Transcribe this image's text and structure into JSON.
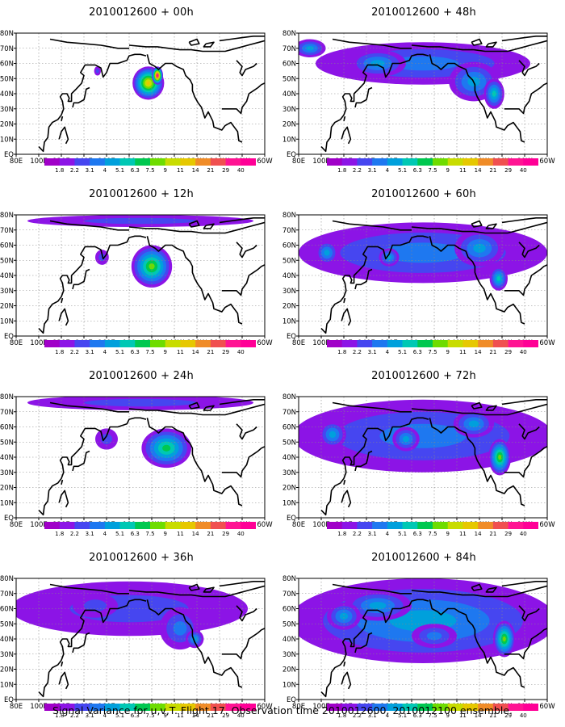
{
  "caption": "Signal Variance for u,v,T. Flight 17. Observation time 2010012600. 2010012100 ensemble.",
  "colorbar": {
    "labels": [
      "1.8",
      "2.2",
      "3.1",
      "4",
      "5.1",
      "6.3",
      "7.5",
      "9",
      "11",
      "14",
      "21",
      "29",
      "40"
    ],
    "colors": [
      "#a000c8",
      "#8c14e6",
      "#4646f0",
      "#1e78f0",
      "#00a0dc",
      "#00c8b4",
      "#00c850",
      "#6edc00",
      "#c8dc00",
      "#e6c800",
      "#f08c28",
      "#f05050",
      "#ff1493",
      "#ff0096"
    ]
  },
  "x_ticks": [
    "80E",
    "100E",
    "120E",
    "140E",
    "160E",
    "180",
    "160W",
    "140W",
    "120W",
    "100W",
    "80W",
    "60W"
  ],
  "y_ticks": [
    "EQ",
    "10N",
    "20N",
    "30N",
    "40N",
    "50N",
    "60N",
    "70N",
    "80N"
  ],
  "chart_data": [
    {
      "type": "heatmap",
      "title": "2010012600 + 00h",
      "lon_range": [
        "80E",
        "60W"
      ],
      "lat_range": [
        "EQ",
        "80N"
      ],
      "blobs": [
        {
          "lon": 197,
          "lat": 47,
          "rlon": 14,
          "rlat": 11,
          "peak": 11
        },
        {
          "lon": 205,
          "lat": 52,
          "rlon": 5,
          "rlat": 6,
          "peak": 40
        },
        {
          "lon": 152,
          "lat": 55,
          "rlon": 3,
          "rlat": 3,
          "peak": 2.2
        }
      ]
    },
    {
      "type": "heatmap",
      "title": "2010012600 + 48h",
      "lon_range": [
        "80E",
        "60W"
      ],
      "lat_range": [
        "EQ",
        "80N"
      ],
      "blobs": [
        {
          "lon": 190,
          "lat": 60,
          "rlon": 95,
          "rlat": 14,
          "peak": 3.1
        },
        {
          "lon": 150,
          "lat": 60,
          "rlon": 25,
          "rlat": 9,
          "peak": 4
        },
        {
          "lon": 235,
          "lat": 48,
          "rlon": 22,
          "rlat": 13,
          "peak": 4
        },
        {
          "lon": 253,
          "lat": 40,
          "rlon": 9,
          "rlat": 10,
          "peak": 5.1
        },
        {
          "lon": 90,
          "lat": 70,
          "rlon": 14,
          "rlat": 6,
          "peak": 4
        }
      ]
    },
    {
      "type": "heatmap",
      "title": "2010012600 + 12h",
      "lon_range": [
        "80E",
        "60W"
      ],
      "lat_range": [
        "EQ",
        "80N"
      ],
      "blobs": [
        {
          "lon": 200,
          "lat": 46,
          "rlon": 18,
          "rlat": 14,
          "peak": 7.5
        },
        {
          "lon": 156,
          "lat": 52,
          "rlon": 6,
          "rlat": 5,
          "peak": 2.2
        },
        {
          "lon": 190,
          "lat": 76,
          "rlon": 100,
          "rlat": 4,
          "peak": 2.2
        }
      ]
    },
    {
      "type": "heatmap",
      "title": "2010012600 + 60h",
      "lon_range": [
        "80E",
        "60W"
      ],
      "lat_range": [
        "EQ",
        "80N"
      ],
      "blobs": [
        {
          "lon": 190,
          "lat": 55,
          "rlon": 110,
          "rlat": 20,
          "peak": 3.1
        },
        {
          "lon": 105,
          "lat": 55,
          "rlon": 10,
          "rlat": 8,
          "peak": 4
        },
        {
          "lon": 160,
          "lat": 52,
          "rlon": 9,
          "rlat": 6,
          "peak": 4
        },
        {
          "lon": 240,
          "lat": 58,
          "rlon": 22,
          "rlat": 12,
          "peak": 4
        },
        {
          "lon": 257,
          "lat": 38,
          "rlon": 8,
          "rlat": 8,
          "peak": 5.1
        }
      ]
    },
    {
      "type": "heatmap",
      "title": "2010012600 + 24h",
      "lon_range": [
        "80E",
        "60W"
      ],
      "lat_range": [
        "EQ",
        "80N"
      ],
      "blobs": [
        {
          "lon": 213,
          "lat": 46,
          "rlon": 22,
          "rlat": 13,
          "peak": 6.3
        },
        {
          "lon": 160,
          "lat": 52,
          "rlon": 10,
          "rlat": 7,
          "peak": 2.2
        },
        {
          "lon": 190,
          "lat": 76,
          "rlon": 100,
          "rlat": 5,
          "peak": 2.2
        }
      ]
    },
    {
      "type": "heatmap",
      "title": "2010012600 + 72h",
      "lon_range": [
        "80E",
        "60W"
      ],
      "lat_range": [
        "EQ",
        "80N"
      ],
      "blobs": [
        {
          "lon": 190,
          "lat": 54,
          "rlon": 115,
          "rlat": 24,
          "peak": 3.1
        },
        {
          "lon": 110,
          "lat": 55,
          "rlon": 12,
          "rlat": 9,
          "peak": 4
        },
        {
          "lon": 175,
          "lat": 52,
          "rlon": 12,
          "rlat": 8,
          "peak": 4
        },
        {
          "lon": 258,
          "lat": 40,
          "rlon": 10,
          "rlat": 12,
          "peak": 7.5
        },
        {
          "lon": 235,
          "lat": 62,
          "rlon": 18,
          "rlat": 9,
          "peak": 4
        }
      ]
    },
    {
      "type": "heatmap",
      "title": "2010012600 + 36h",
      "lon_range": [
        "80E",
        "60W"
      ],
      "lat_range": [
        "EQ",
        "80N"
      ],
      "blobs": [
        {
          "lon": 180,
          "lat": 60,
          "rlon": 105,
          "rlat": 18,
          "peak": 2.2
        },
        {
          "lon": 225,
          "lat": 47,
          "rlon": 18,
          "rlat": 14,
          "peak": 3.1
        },
        {
          "lon": 238,
          "lat": 40,
          "rlon": 8,
          "rlat": 6,
          "peak": 4
        },
        {
          "lon": 150,
          "lat": 62,
          "rlon": 20,
          "rlat": 8,
          "peak": 2.2
        }
      ]
    },
    {
      "type": "heatmap",
      "title": "2010012600 + 84h",
      "lon_range": [
        "80E",
        "60W"
      ],
      "lat_range": [
        "EQ",
        "80N"
      ],
      "blobs": [
        {
          "lon": 190,
          "lat": 52,
          "rlon": 118,
          "rlat": 28,
          "peak": 4
        },
        {
          "lon": 262,
          "lat": 40,
          "rlon": 10,
          "rlat": 12,
          "peak": 7.5
        },
        {
          "lon": 150,
          "lat": 62,
          "rlon": 30,
          "rlat": 10,
          "peak": 4
        },
        {
          "lon": 120,
          "lat": 55,
          "rlon": 15,
          "rlat": 9,
          "peak": 4
        },
        {
          "lon": 200,
          "lat": 42,
          "rlon": 20,
          "rlat": 8,
          "peak": 3.1
        }
      ]
    }
  ]
}
